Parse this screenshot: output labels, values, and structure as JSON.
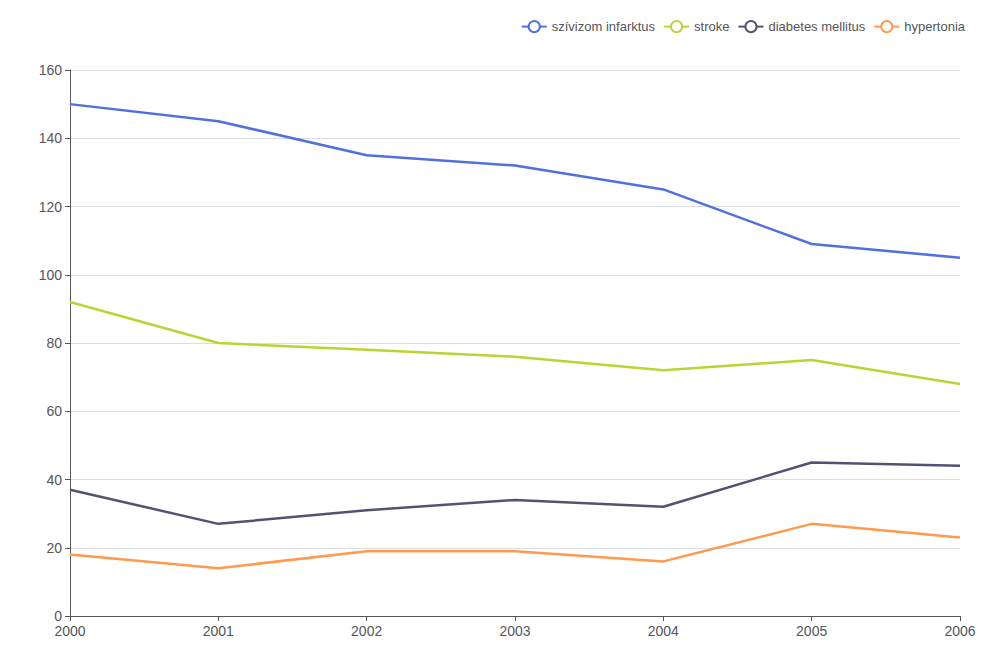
{
  "chart_data": {
    "type": "line",
    "x": [
      2000,
      2001,
      2002,
      2003,
      2004,
      2005,
      2006
    ],
    "series": [
      {
        "name": "szívizom infarktus",
        "values": [
          150,
          145,
          135,
          132,
          125,
          109,
          105
        ]
      },
      {
        "name": "stroke",
        "values": [
          92,
          80,
          78,
          76,
          72,
          75,
          68
        ]
      },
      {
        "name": "diabetes mellitus",
        "values": [
          37,
          27,
          31,
          34,
          32,
          45,
          44
        ]
      },
      {
        "name": "hypertonia",
        "values": [
          18,
          14,
          19,
          19,
          16,
          27,
          23
        ]
      }
    ],
    "xlim": [
      2000,
      2006
    ],
    "xticks": [
      2000,
      2001,
      2002,
      2003,
      2004,
      2005,
      2006
    ],
    "ylim": [
      0,
      160
    ],
    "yticks": [
      0,
      20,
      40,
      60,
      80,
      100,
      120,
      140,
      160
    ],
    "grid": true,
    "legend": "upper right"
  }
}
